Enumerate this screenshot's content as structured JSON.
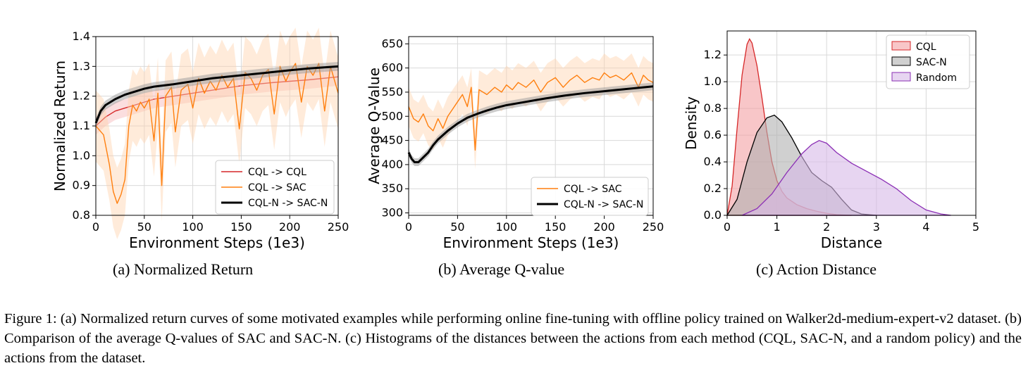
{
  "figure": {
    "caption": "Figure 1: (a) Normalized return curves of some motivated examples while performing online fine-tuning with offline policy trained on Walker2d-medium-expert-v2 dataset. (b) Comparison of the average Q-values of SAC and SAC-N. (c) Histograms of the distances between the actions from each method (CQL, SAC-N, and a random policy) and the actions from the dataset."
  },
  "colors": {
    "cql_red": "#d62728",
    "sac_orange": "#ff7f0e",
    "sacn_black": "#000000",
    "cql_fill": "#f4a0a4",
    "sacn_fill": "#b0b0b0",
    "random_fill": "#d7b9e8",
    "random_line": "#8b2fb5"
  },
  "chart_data": [
    {
      "id": "a",
      "type": "line",
      "subcaption": "(a) Normalized Return",
      "xlabel": "Environment Steps (1e3)",
      "ylabel": "Normalized Return",
      "xlim": [
        0,
        250
      ],
      "ylim": [
        0.8,
        1.4
      ],
      "xticks": [
        0,
        50,
        100,
        150,
        200,
        250
      ],
      "yticks": [
        0.8,
        0.9,
        1.0,
        1.1,
        1.2,
        1.3,
        1.4
      ],
      "ytick_labels": [
        "0.8",
        "0.9",
        "1.0",
        "1.1",
        "1.2",
        "1.3",
        "1.4"
      ],
      "grid": true,
      "legend_position": "lower-right",
      "series": [
        {
          "name": "CQL -> CQL",
          "color": "#d62728",
          "x": [
            0,
            10,
            20,
            30,
            40,
            50,
            60,
            80,
            100,
            120,
            150,
            180,
            200,
            220,
            250
          ],
          "y": [
            1.1,
            1.13,
            1.15,
            1.16,
            1.17,
            1.18,
            1.19,
            1.2,
            1.21,
            1.22,
            1.235,
            1.245,
            1.25,
            1.255,
            1.265
          ]
        },
        {
          "name": "CQL -> SAC",
          "color": "#ff7f0e",
          "x": [
            0,
            8,
            14,
            18,
            22,
            26,
            30,
            34,
            38,
            42,
            46,
            50,
            55,
            60,
            64,
            68,
            72,
            78,
            82,
            88,
            95,
            100,
            106,
            112,
            118,
            124,
            130,
            136,
            142,
            148,
            154,
            160,
            166,
            172,
            178,
            184,
            190,
            196,
            200,
            206,
            212,
            218,
            224,
            230,
            236,
            242,
            250
          ],
          "y": [
            1.1,
            1.07,
            0.97,
            0.88,
            0.84,
            0.87,
            0.92,
            1.1,
            1.17,
            1.15,
            1.18,
            1.16,
            1.19,
            1.05,
            1.21,
            0.9,
            1.2,
            1.23,
            1.08,
            1.22,
            1.24,
            1.16,
            1.26,
            1.21,
            1.25,
            1.22,
            1.27,
            1.23,
            1.26,
            1.09,
            1.28,
            1.26,
            1.22,
            1.27,
            1.29,
            1.14,
            1.3,
            1.25,
            1.28,
            1.31,
            1.18,
            1.3,
            1.27,
            1.31,
            1.15,
            1.3,
            1.21
          ]
        },
        {
          "name": "CQL-N -> SAC-N",
          "color": "#000000",
          "x": [
            0,
            5,
            10,
            20,
            30,
            40,
            50,
            60,
            80,
            100,
            120,
            150,
            180,
            200,
            220,
            250
          ],
          "y": [
            1.11,
            1.15,
            1.17,
            1.19,
            1.205,
            1.215,
            1.225,
            1.232,
            1.24,
            1.25,
            1.26,
            1.27,
            1.28,
            1.287,
            1.293,
            1.3
          ]
        }
      ]
    },
    {
      "id": "b",
      "type": "line",
      "subcaption": "(b) Average Q-value",
      "xlabel": "Environment Steps (1e3)",
      "ylabel": "Average Q-Value",
      "xlim": [
        0,
        250
      ],
      "ylim": [
        295,
        665
      ],
      "xticks": [
        0,
        50,
        100,
        150,
        200,
        250
      ],
      "yticks": [
        300,
        350,
        400,
        450,
        500,
        550,
        600,
        650
      ],
      "grid": true,
      "legend_position": "lower-right",
      "series": [
        {
          "name": "CQL -> SAC",
          "color": "#ff7f0e",
          "x": [
            0,
            5,
            10,
            15,
            20,
            25,
            30,
            35,
            40,
            45,
            50,
            55,
            60,
            64,
            68,
            72,
            80,
            88,
            95,
            100,
            106,
            112,
            120,
            128,
            135,
            142,
            150,
            158,
            165,
            172,
            180,
            188,
            195,
            200,
            206,
            212,
            220,
            228,
            235,
            240,
            245,
            250
          ],
          "y": [
            520,
            495,
            488,
            505,
            480,
            470,
            495,
            475,
            500,
            515,
            530,
            545,
            520,
            560,
            430,
            555,
            545,
            560,
            550,
            565,
            555,
            570,
            560,
            575,
            550,
            570,
            580,
            560,
            575,
            585,
            570,
            580,
            575,
            590,
            580,
            585,
            575,
            590,
            560,
            585,
            575,
            570
          ]
        },
        {
          "name": "CQL-N -> SAC-N",
          "color": "#000000",
          "x": [
            0,
            3,
            6,
            10,
            15,
            20,
            25,
            30,
            40,
            50,
            60,
            70,
            80,
            90,
            100,
            120,
            140,
            160,
            180,
            200,
            220,
            250
          ],
          "y": [
            425,
            412,
            405,
            405,
            415,
            425,
            440,
            452,
            470,
            485,
            497,
            505,
            512,
            518,
            523,
            530,
            537,
            543,
            548,
            552,
            556,
            562
          ]
        }
      ]
    },
    {
      "id": "c",
      "type": "area",
      "subcaption": "(c) Action Distance",
      "xlabel": "Distance",
      "ylabel": "Density",
      "xlim": [
        0,
        5
      ],
      "ylim": [
        0,
        1.38
      ],
      "xticks": [
        0,
        1,
        2,
        3,
        4,
        5
      ],
      "yticks": [
        0.0,
        0.2,
        0.4,
        0.6,
        0.8,
        1.0,
        1.2
      ],
      "ytick_labels": [
        "0.0",
        "0.2",
        "0.4",
        "0.6",
        "0.8",
        "1.0",
        "1.2"
      ],
      "grid": true,
      "legend_position": "top-right",
      "series": [
        {
          "name": "CQL",
          "fill": "#f4a0a4",
          "color": "#d62728",
          "x": [
            0,
            0.1,
            0.2,
            0.3,
            0.4,
            0.45,
            0.5,
            0.6,
            0.7,
            0.8,
            0.9,
            1.0,
            1.1,
            1.2,
            1.4,
            1.6,
            1.8,
            2.0,
            2.2,
            2.5
          ],
          "y": [
            0.0,
            0.22,
            0.65,
            1.05,
            1.28,
            1.32,
            1.29,
            1.12,
            0.88,
            0.62,
            0.4,
            0.26,
            0.18,
            0.13,
            0.08,
            0.05,
            0.03,
            0.015,
            0.005,
            0.0
          ]
        },
        {
          "name": "SAC-N",
          "fill": "#b0b0b0",
          "color": "#000000",
          "x": [
            0,
            0.2,
            0.4,
            0.6,
            0.8,
            0.95,
            1.1,
            1.3,
            1.5,
            1.7,
            1.9,
            2.1,
            2.3,
            2.5,
            2.7,
            3.0
          ],
          "y": [
            0.0,
            0.12,
            0.4,
            0.62,
            0.73,
            0.75,
            0.7,
            0.58,
            0.44,
            0.32,
            0.26,
            0.21,
            0.12,
            0.04,
            0.01,
            0.0
          ]
        },
        {
          "name": "Random",
          "fill": "#d7b9e8",
          "color": "#8b2fb5",
          "x": [
            0.3,
            0.6,
            0.9,
            1.2,
            1.5,
            1.7,
            1.85,
            2.0,
            2.2,
            2.5,
            2.8,
            3.1,
            3.4,
            3.7,
            4.0,
            4.3,
            4.5
          ],
          "y": [
            0.0,
            0.05,
            0.16,
            0.32,
            0.46,
            0.53,
            0.56,
            0.54,
            0.47,
            0.39,
            0.33,
            0.27,
            0.2,
            0.11,
            0.04,
            0.01,
            0.0
          ]
        }
      ]
    }
  ]
}
